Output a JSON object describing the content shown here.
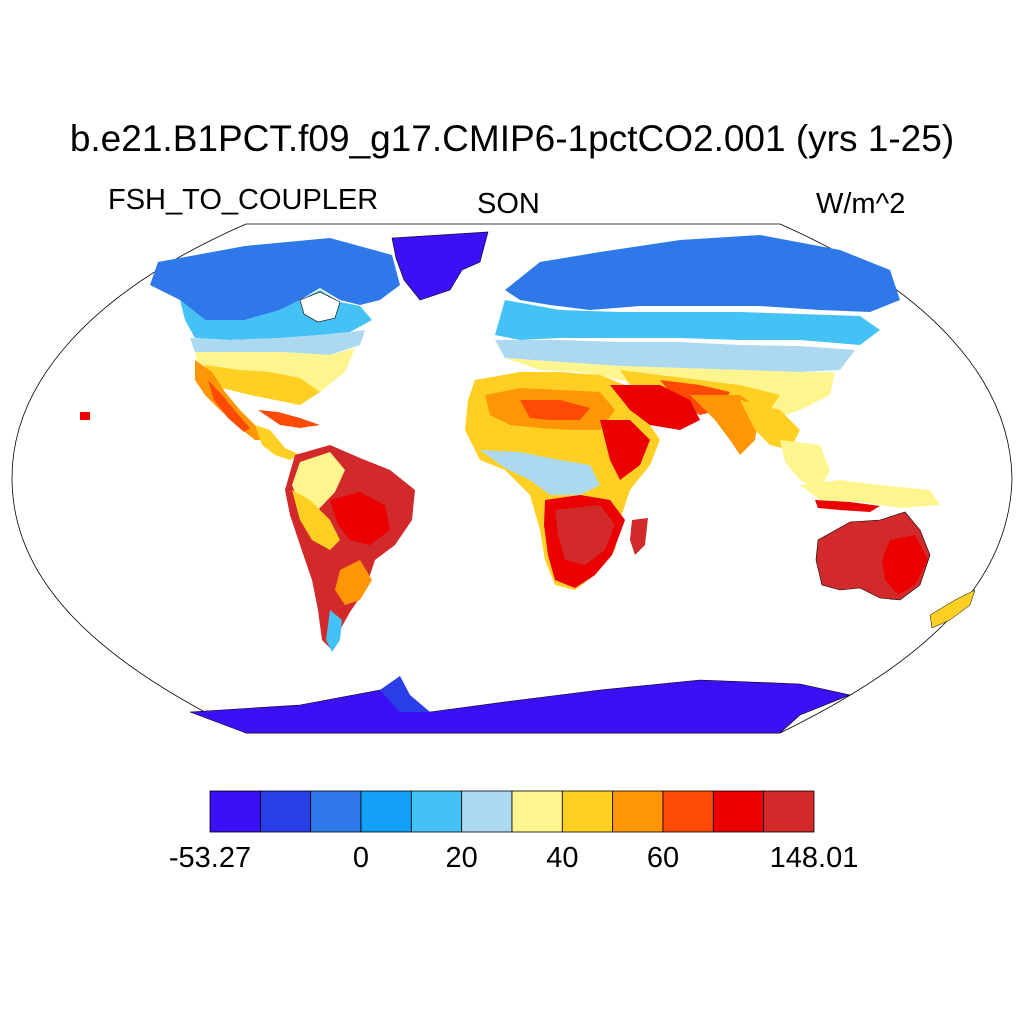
{
  "title": "b.e21.B1PCT.f09_g17.CMIP6-1pctCO2.001 (yrs 1-25)",
  "variable": "FSH_TO_COUPLER",
  "season": "SON",
  "units": "W/m^2",
  "colorbar": {
    "colors": [
      "#3c10f5",
      "#2a3ee8",
      "#2e78ea",
      "#12a0f8",
      "#45c2f5",
      "#acd9ef",
      "#fff58e",
      "#ffd023",
      "#ff9605",
      "#ff4a06",
      "#ea0000",
      "#d22a2a"
    ],
    "labels": [
      "-53.27",
      "0",
      "20",
      "40",
      "60",
      "148.01"
    ]
  }
}
